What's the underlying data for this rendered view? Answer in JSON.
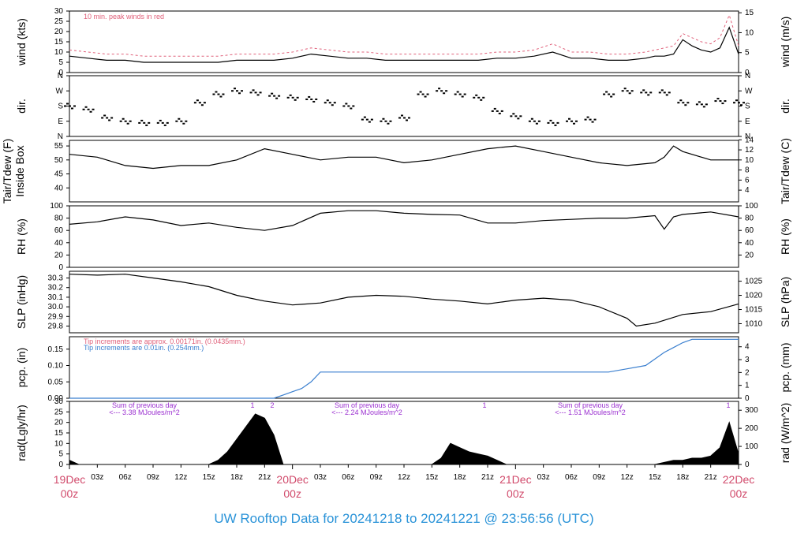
{
  "footer": "UW Rooftop Data for 20241218  to  20241221 @ 23:56:56  (UTC)",
  "colors": {
    "date": "#d14a6b",
    "footer": "#2a93d8",
    "peak": "#e0607a",
    "pcp_blue": "#3a7fcf",
    "rad_note": "#9b30d0"
  },
  "x_axis": {
    "hour_labels": [
      "03z",
      "06z",
      "09z",
      "12z",
      "15z",
      "18z",
      "21z",
      "03z",
      "06z",
      "09z",
      "12z",
      "15z",
      "18z",
      "21z",
      "03z",
      "06z",
      "09z",
      "12z",
      "15z",
      "18z",
      "21z"
    ],
    "day_labels": [
      {
        "top": "19Dec",
        "bottom": "00z"
      },
      {
        "top": "20Dec",
        "bottom": "00z"
      },
      {
        "top": "21Dec",
        "bottom": "00z"
      },
      {
        "top": "22Dec",
        "bottom": "00z"
      }
    ]
  },
  "chart_data": [
    {
      "id": "wind",
      "type": "line",
      "left_label": "wind (kts)",
      "right_label": "wind (m/s)",
      "left_ticks": [
        "0",
        "5",
        "10",
        "15",
        "20",
        "25",
        "30"
      ],
      "left_range": [
        0,
        30
      ],
      "right_ticks": [
        "0",
        "5",
        "10",
        "15"
      ],
      "right_range": [
        0,
        15.43
      ],
      "note": "10 min. peak winds in red",
      "x_hours": [
        0,
        2,
        4,
        6,
        8,
        10,
        12,
        14,
        16,
        18,
        20,
        22,
        24,
        26,
        28,
        30,
        32,
        34,
        36,
        38,
        40,
        42,
        44,
        46,
        48,
        50,
        52,
        54,
        56,
        58,
        60,
        62,
        63,
        64,
        65,
        66,
        67,
        68,
        69,
        70,
        71,
        72
      ],
      "series": [
        {
          "role": "mean",
          "values": [
            8,
            7,
            6,
            6,
            5,
            5,
            5,
            5,
            5,
            6,
            6,
            6,
            7,
            9,
            8,
            7,
            7,
            6,
            6,
            6,
            6,
            6,
            6,
            7,
            7,
            8,
            10,
            7,
            7,
            6,
            6,
            7,
            8,
            8,
            9,
            16,
            13,
            11,
            10,
            12,
            22,
            9
          ]
        },
        {
          "role": "peak",
          "values": [
            11,
            10,
            9,
            9,
            8,
            8,
            8,
            8,
            8,
            9,
            9,
            9,
            10,
            12,
            11,
            10,
            10,
            9,
            9,
            9,
            9,
            9,
            9,
            10,
            10,
            11,
            14,
            10,
            10,
            9,
            9,
            10,
            11,
            12,
            13,
            19,
            17,
            15,
            14,
            17,
            28,
            13
          ]
        }
      ]
    },
    {
      "id": "dir",
      "type": "scatter",
      "left_label": "dir.",
      "right_label": "dir.",
      "left_ticks": [
        "N",
        "E",
        "S",
        "W",
        "N"
      ],
      "right_ticks": [
        "N",
        "E",
        "S",
        "W",
        "N"
      ],
      "range": [
        0,
        360
      ],
      "x_hours": [
        0,
        2,
        4,
        6,
        8,
        10,
        12,
        14,
        16,
        18,
        20,
        22,
        24,
        26,
        28,
        30,
        32,
        34,
        36,
        38,
        40,
        42,
        44,
        46,
        48,
        50,
        52,
        54,
        56,
        58,
        60,
        62,
        64,
        66,
        68,
        70,
        72
      ],
      "values": [
        180,
        160,
        110,
        90,
        80,
        80,
        90,
        200,
        250,
        270,
        260,
        240,
        230,
        220,
        200,
        180,
        100,
        90,
        110,
        250,
        270,
        250,
        230,
        150,
        120,
        90,
        80,
        90,
        100,
        250,
        270,
        260,
        260,
        200,
        190,
        210,
        200
      ]
    },
    {
      "id": "temp",
      "type": "line",
      "left_label": "Tair/Tdew (F)",
      "left_label2": "Inside Box",
      "right_label": "Tair/Tdew (C)",
      "left_ticks": [
        "40",
        "45",
        "50",
        "55"
      ],
      "left_range": [
        35,
        57
      ],
      "right_ticks": [
        "4",
        "6",
        "8",
        "10",
        "12",
        "14"
      ],
      "right_range": [
        1.67,
        13.89
      ],
      "x_hours": [
        0,
        3,
        6,
        9,
        12,
        15,
        18,
        21,
        24,
        27,
        30,
        33,
        36,
        39,
        42,
        45,
        48,
        51,
        54,
        57,
        60,
        63,
        64,
        65,
        66,
        69,
        72
      ],
      "values": [
        52,
        51,
        48,
        47,
        48,
        48,
        50,
        54,
        52,
        50,
        51,
        51,
        49,
        50,
        52,
        54,
        55,
        53,
        51,
        49,
        48,
        49,
        51,
        55,
        53,
        50,
        50
      ]
    },
    {
      "id": "rh",
      "type": "line",
      "left_label": "RH (%)",
      "right_label": "RH (%)",
      "left_ticks": [
        "0",
        "20",
        "40",
        "60",
        "80",
        "100"
      ],
      "left_range": [
        0,
        100
      ],
      "right_ticks": [
        "20",
        "40",
        "60",
        "80",
        "100"
      ],
      "right_range": [
        0,
        100
      ],
      "x_hours": [
        0,
        3,
        6,
        9,
        12,
        15,
        18,
        21,
        24,
        27,
        30,
        33,
        36,
        39,
        42,
        45,
        48,
        51,
        54,
        57,
        60,
        63,
        64,
        65,
        66,
        69,
        72
      ],
      "values": [
        70,
        74,
        82,
        77,
        68,
        72,
        65,
        60,
        68,
        88,
        92,
        92,
        88,
        86,
        85,
        72,
        72,
        76,
        78,
        80,
        80,
        84,
        62,
        82,
        86,
        90,
        82
      ]
    },
    {
      "id": "slp",
      "type": "line",
      "left_label": "SLP (inHg)",
      "right_label": "SLP (hPa)",
      "left_ticks": [
        "29.8",
        "29.9",
        "30.0",
        "30.1",
        "30.2",
        "30.3"
      ],
      "left_range": [
        29.73,
        30.37
      ],
      "right_ticks": [
        "1010",
        "1015",
        "1020",
        "1025"
      ],
      "right_range": [
        1006.8,
        1028.5
      ],
      "x_hours": [
        0,
        3,
        6,
        9,
        12,
        15,
        18,
        21,
        24,
        27,
        30,
        33,
        36,
        39,
        42,
        45,
        48,
        51,
        54,
        57,
        60,
        61,
        63,
        66,
        69,
        72
      ],
      "values": [
        30.34,
        30.33,
        30.34,
        30.3,
        30.26,
        30.21,
        30.12,
        30.06,
        30.02,
        30.04,
        30.1,
        30.12,
        30.11,
        30.08,
        30.06,
        30.03,
        30.07,
        30.09,
        30.07,
        30.0,
        29.88,
        29.8,
        29.83,
        29.92,
        29.95,
        30.03
      ]
    },
    {
      "id": "pcp",
      "type": "line",
      "left_label": "pcp. (in)",
      "right_label": "pcp. (mm)",
      "left_ticks": [
        "0.00",
        "0.05",
        "0.10",
        "0.15"
      ],
      "left_range": [
        0,
        0.188
      ],
      "right_ticks": [
        "0",
        "1",
        "2",
        "3",
        "4"
      ],
      "right_range": [
        0,
        4.78
      ],
      "note1": "Tip increments are approx. 0.00171in. (0.0435mm.)",
      "note2": "Tip increments are 0.01in. (0.254mm.)",
      "x_hours": [
        0,
        22,
        23,
        24,
        25,
        26,
        27,
        58,
        60,
        62,
        63,
        64,
        65,
        66,
        67,
        68,
        72
      ],
      "values": [
        0,
        0,
        0.01,
        0.02,
        0.03,
        0.05,
        0.08,
        0.08,
        0.09,
        0.1,
        0.12,
        0.14,
        0.155,
        0.17,
        0.18,
        0.18,
        0.18
      ]
    },
    {
      "id": "rad",
      "type": "area",
      "left_label": "rad(Lgly/hr)",
      "right_label": "rad (W/m^2)",
      "left_ticks": [
        "0",
        "5",
        "10",
        "15",
        "20",
        "25",
        "30"
      ],
      "left_range": [
        0,
        30
      ],
      "right_ticks": [
        "0",
        "100",
        "200",
        "300"
      ],
      "right_range": [
        0,
        348.9
      ],
      "notes": [
        {
          "line1": "Sum of previous day",
          "line2": "<--- 3.38 MJoules/m^2"
        },
        {
          "line1": "Sum of previous day",
          "line2": "<--- 2.24 MJoules/m^2"
        },
        {
          "line1": "Sum of previous day",
          "line2": "<--- 1.51 MJoules/m^2"
        }
      ],
      "markers": [
        "1",
        "2",
        "1",
        "1"
      ],
      "x_hours": [
        0,
        0.5,
        1,
        15,
        16,
        17,
        18,
        19,
        20,
        21,
        22,
        23,
        39,
        40,
        41,
        42,
        43,
        44,
        45,
        47,
        63,
        64,
        65,
        66,
        67,
        68,
        69,
        70,
        71,
        72
      ],
      "values": [
        2,
        1,
        0,
        0,
        2,
        6,
        12,
        18,
        24,
        22,
        14,
        0,
        0,
        3,
        10,
        8,
        6,
        5,
        4,
        0,
        0,
        1,
        2,
        2,
        3,
        3,
        4,
        8,
        20,
        5
      ]
    }
  ]
}
